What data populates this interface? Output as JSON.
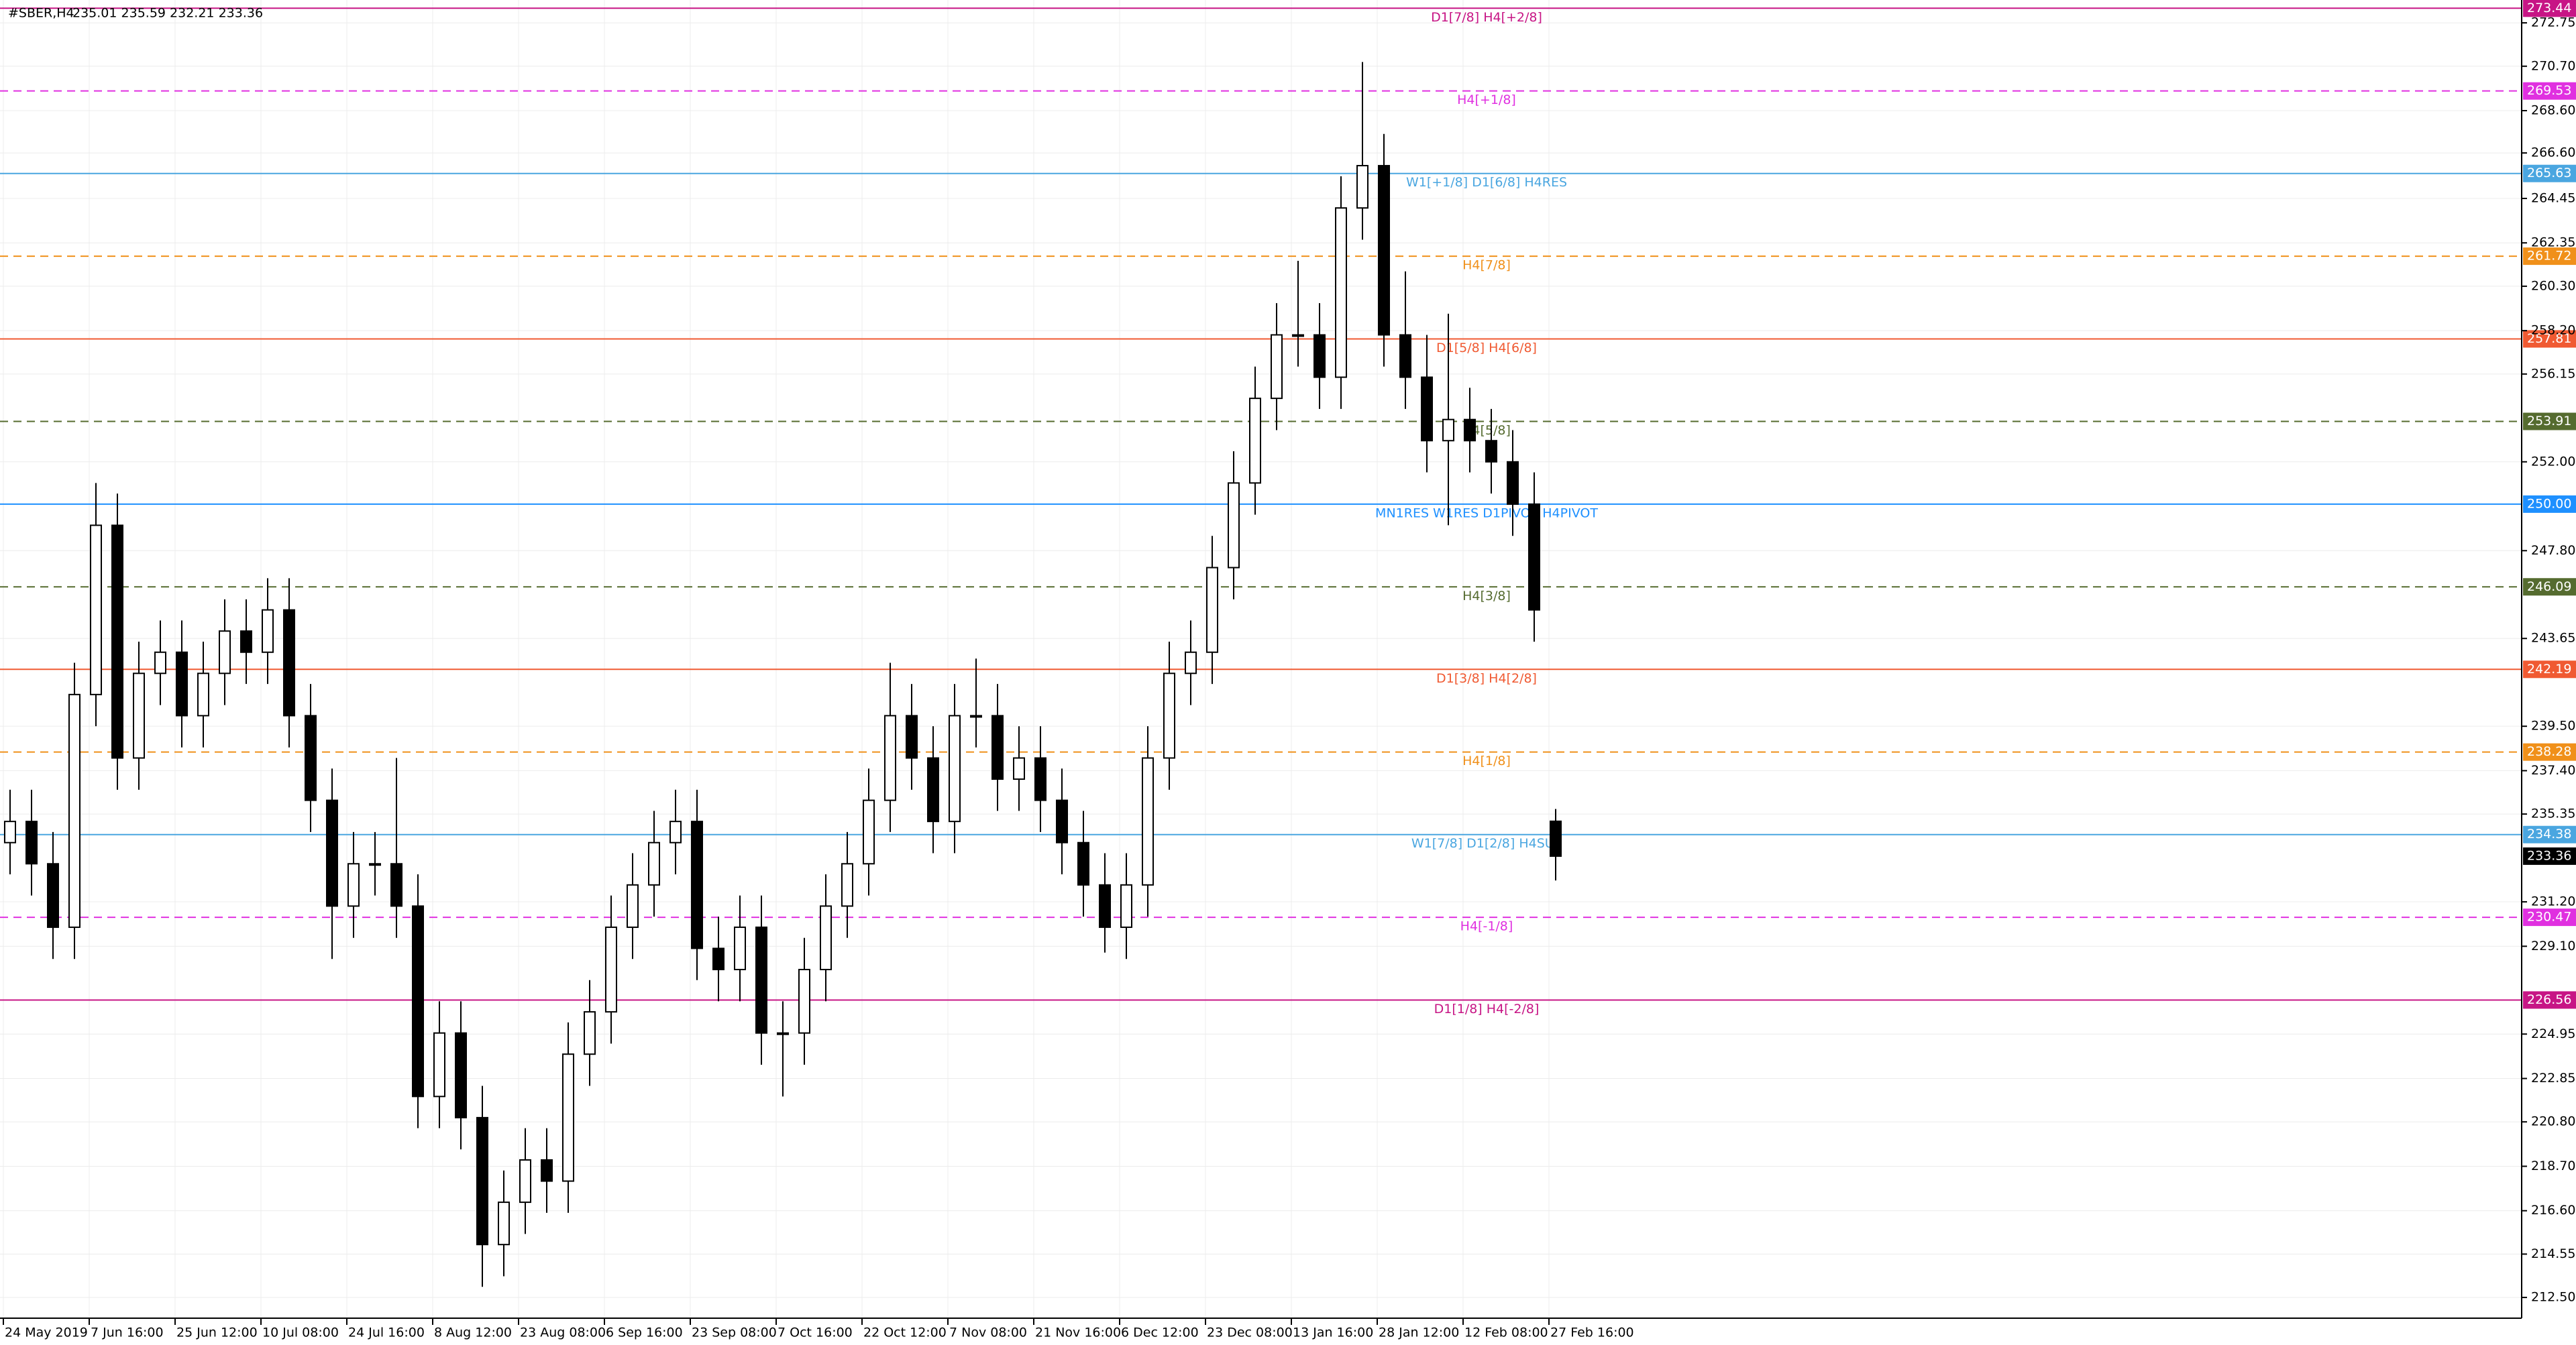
{
  "chart_data": {
    "type": "candlestick",
    "symbol": "#SBER,H4",
    "quote": "235.01 235.59 232.21 233.36",
    "categories": [
      "24 May 2019",
      null,
      null,
      null,
      "7 Jun 16:00",
      null,
      null,
      null,
      "25 Jun 12:00",
      null,
      null,
      null,
      "10 Jul 08:00",
      null,
      null,
      null,
      "24 Jul 16:00",
      null,
      null,
      null,
      "8 Aug 12:00",
      null,
      null,
      null,
      "23 Aug 08:00",
      null,
      null,
      null,
      "6 Sep 16:00",
      null,
      null,
      null,
      "23 Sep 08:00",
      null,
      null,
      null,
      "7 Oct 16:00",
      null,
      null,
      null,
      "22 Oct 12:00",
      null,
      null,
      null,
      "7 Nov 08:00",
      null,
      null,
      null,
      "21 Nov 16:00",
      null,
      null,
      null,
      "6 Dec 12:00",
      null,
      null,
      null,
      "23 Dec 08:00",
      null,
      null,
      null,
      "13 Jan 16:00",
      null,
      null,
      null,
      "28 Jan 12:00",
      null,
      null,
      null,
      "12 Feb 08:00",
      null,
      null,
      null,
      "27 Feb 16:00"
    ],
    "open": [
      234,
      235,
      233,
      230,
      241,
      249,
      238,
      242,
      243,
      240,
      242,
      244,
      243,
      245,
      240,
      236,
      231,
      233,
      233,
      231,
      222,
      225,
      221,
      215,
      217,
      219,
      218,
      224,
      226,
      230,
      232,
      234,
      235,
      229,
      228,
      230,
      225,
      225,
      228,
      231,
      233,
      236,
      240,
      238,
      235,
      240,
      240,
      237,
      238,
      236,
      234,
      232,
      230,
      232,
      238,
      242,
      243,
      247,
      251,
      255,
      258,
      258,
      256,
      264,
      266,
      258,
      256,
      253,
      254,
      253,
      252,
      250,
      235.01
    ],
    "high": [
      236.5,
      236.5,
      234.5,
      242.5,
      251,
      250.5,
      243.5,
      244.5,
      244.5,
      243.5,
      245.5,
      245.5,
      246.5,
      246.5,
      241.5,
      237.5,
      234.5,
      234.5,
      238,
      232.5,
      226.5,
      226.5,
      222.5,
      218.5,
      220.5,
      220.5,
      225.5,
      227.5,
      231.5,
      233.5,
      235.5,
      236.5,
      236.5,
      230.5,
      231.5,
      231.5,
      226.5,
      229.5,
      232.5,
      234.5,
      237.5,
      242.5,
      241.5,
      239.5,
      241.5,
      242.7,
      241.5,
      239.5,
      239.5,
      237.5,
      235.5,
      233.5,
      233.5,
      239.5,
      243.5,
      244.5,
      248.5,
      252.5,
      256.5,
      259.5,
      261.5,
      259.5,
      265.5,
      270.9,
      267.5,
      261,
      258,
      259,
      255.5,
      254.5,
      253.5,
      251.5,
      235.59
    ],
    "low": [
      232.5,
      231.5,
      228.5,
      228.5,
      239.5,
      236.5,
      236.5,
      240.5,
      238.5,
      238.5,
      240.5,
      241.5,
      241.5,
      238.5,
      234.5,
      228.5,
      229.5,
      231.5,
      229.5,
      220.5,
      220.5,
      219.5,
      213,
      213.5,
      215.5,
      216.5,
      216.5,
      222.5,
      224.5,
      228.5,
      230.5,
      232.5,
      227.5,
      226.5,
      226.5,
      223.5,
      222,
      223.5,
      226.5,
      229.5,
      231.5,
      234.5,
      236.5,
      233.5,
      233.5,
      238.5,
      235.5,
      235.5,
      234.5,
      232.5,
      230.5,
      228.8,
      228.5,
      230.5,
      236.5,
      240.5,
      241.5,
      245.5,
      249.5,
      253.5,
      256.5,
      254.5,
      254.5,
      262.5,
      256.5,
      254.5,
      251.5,
      249,
      251.5,
      250.5,
      248.5,
      243.5,
      232.21
    ],
    "close": [
      235,
      233,
      230,
      241,
      249,
      238,
      242,
      243,
      240,
      242,
      244,
      243,
      245,
      240,
      236,
      231,
      233,
      233,
      231,
      222,
      225,
      221,
      215,
      217,
      219,
      218,
      224,
      226,
      230,
      232,
      234,
      235,
      229,
      228,
      230,
      225,
      225,
      228,
      231,
      233,
      236,
      240,
      238,
      235,
      240,
      240,
      237,
      238,
      236,
      234,
      232,
      230,
      232,
      238,
      242,
      243,
      247,
      251,
      255,
      258,
      258,
      256,
      264,
      266,
      258,
      256,
      253,
      254,
      253,
      252,
      250,
      245,
      233.36
    ],
    "ylim": [
      211.52,
      273.83
    ],
    "yticks": [
      {
        "value": 272.75,
        "label": "272.75"
      },
      {
        "value": 270.7,
        "label": "270.70"
      },
      {
        "value": 268.6,
        "label": "268.60"
      },
      {
        "value": 266.6,
        "label": "266.60"
      },
      {
        "value": 264.45,
        "label": "264.45"
      },
      {
        "value": 262.35,
        "label": "262.35"
      },
      {
        "value": 260.3,
        "label": "260.30"
      },
      {
        "value": 258.2,
        "label": "258.20"
      },
      {
        "value": 256.15,
        "label": "256.15"
      },
      {
        "value": 252,
        "label": "252.00"
      },
      {
        "value": 247.8,
        "label": "247.80"
      },
      {
        "value": 243.65,
        "label": "243.65"
      },
      {
        "value": 239.5,
        "label": "239.50"
      },
      {
        "value": 237.4,
        "label": "237.40"
      },
      {
        "value": 235.35,
        "label": "235.35"
      },
      {
        "value": 231.2,
        "label": "231.20"
      },
      {
        "value": 229.1,
        "label": "229.10"
      },
      {
        "value": 224.95,
        "label": "224.95"
      },
      {
        "value": 222.85,
        "label": "222.85"
      },
      {
        "value": 220.8,
        "label": "220.80"
      },
      {
        "value": 218.7,
        "label": "218.70"
      },
      {
        "value": 216.6,
        "label": "216.60"
      },
      {
        "value": 214.55,
        "label": "214.55"
      },
      {
        "value": 212.5,
        "label": "212.50"
      }
    ],
    "grid": true,
    "levels": [
      {
        "label": "D1[7/8] H4[+2/8]",
        "value": 273.44,
        "color": "#c71585",
        "dashed": false
      },
      {
        "label": "H4[+1/8]",
        "value": 269.53,
        "color": "#e030e0",
        "dashed": true
      },
      {
        "label": "W1[+1/8] D1[6/8] H4RES",
        "value": 265.63,
        "color": "#4aa6e0",
        "dashed": false
      },
      {
        "label": "H4[7/8]",
        "value": 261.72,
        "color": "#f0901a",
        "dashed": true
      },
      {
        "label": "D1[5/8] H4[6/8]",
        "value": 257.81,
        "color": "#f05a32",
        "dashed": false
      },
      {
        "label": "H4[5/8]",
        "value": 253.91,
        "color": "#556b2f",
        "dashed": true
      },
      {
        "label": "MN1RES W1RES D1PIVOT H4PIVOT",
        "value": 250.0,
        "value_label": "250.00",
        "color": "#1e90ff",
        "dashed": false
      },
      {
        "label": "H4[3/8]",
        "value": 246.09,
        "color": "#556b2f",
        "dashed": true
      },
      {
        "label": "D1[3/8] H4[2/8]",
        "value": 242.19,
        "color": "#f05a32",
        "dashed": false
      },
      {
        "label": "H4[1/8]",
        "value": 238.28,
        "color": "#f0901a",
        "dashed": true
      },
      {
        "label": "W1[7/8] D1[2/8] H4SUP",
        "value": 234.38,
        "color": "#4aa6e0",
        "dashed": false
      },
      {
        "label": "H4[-1/8]",
        "value": 230.47,
        "color": "#e030e0",
        "dashed": true
      },
      {
        "label": "D1[1/8] H4[-2/8]",
        "value": 226.56,
        "color": "#c71585",
        "dashed": false
      }
    ],
    "current_price": 233.36
  }
}
